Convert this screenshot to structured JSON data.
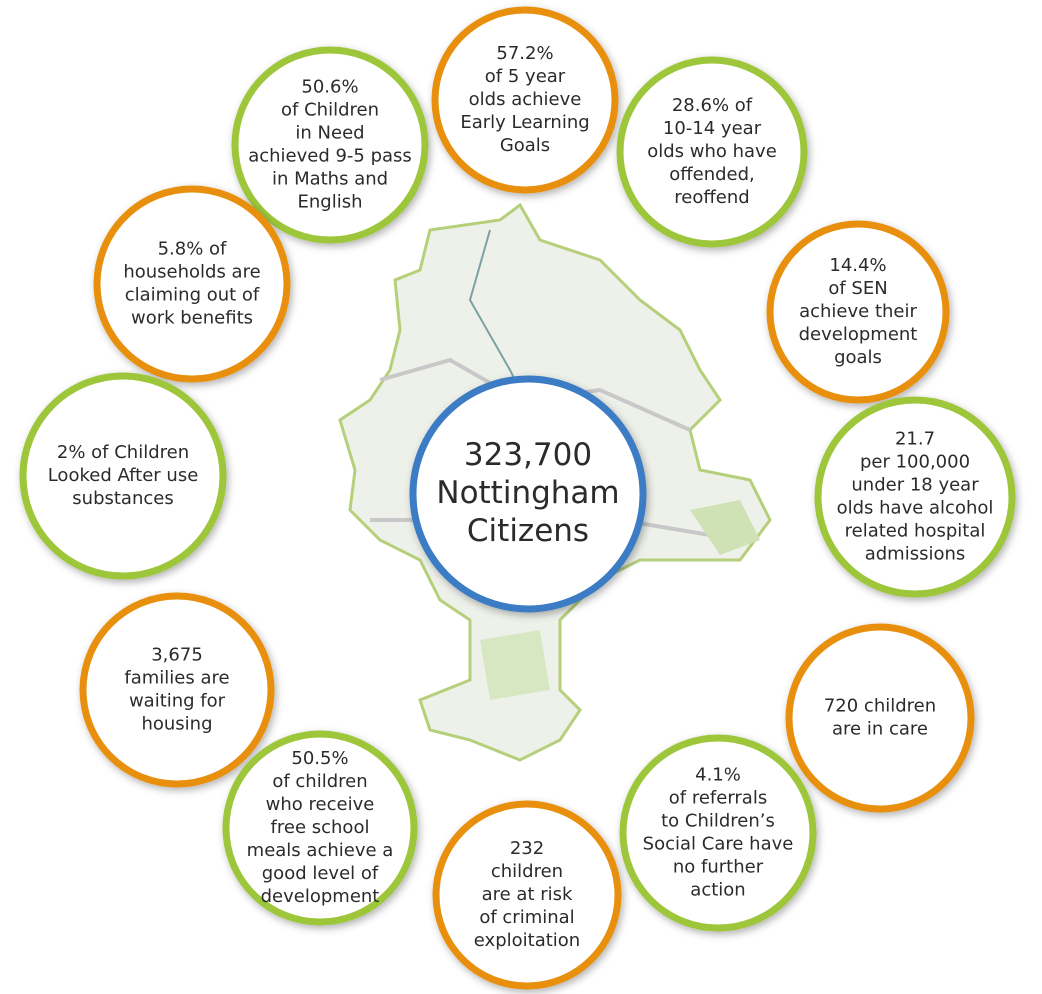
{
  "center": {
    "lines": [
      "323,700",
      "Nottingham",
      "Citizens"
    ]
  },
  "circles": [
    {
      "lines": [
        "57.2%",
        "of 5 year",
        "olds achieve",
        "Early Learning",
        "Goals"
      ]
    },
    {
      "lines": [
        "50.6%",
        "of Children",
        "in Need",
        "achieved 9-5 pass",
        "in Maths and",
        "English"
      ]
    },
    {
      "lines": [
        "28.6% of",
        "10-14 year",
        "olds who have",
        "offended,",
        "reoffend"
      ]
    },
    {
      "lines": [
        "5.8% of",
        "households are",
        "claiming out of",
        "work benefits"
      ]
    },
    {
      "lines": [
        "14.4%",
        "of SEN",
        "achieve their",
        "development",
        "goals"
      ]
    },
    {
      "lines": [
        "2% of Children",
        "Looked After use",
        "substances"
      ]
    },
    {
      "lines": [
        "21.7",
        "per 100,000",
        "under 18 year",
        "olds have alcohol",
        "related hospital",
        "admissions"
      ]
    },
    {
      "lines": [
        "3,675",
        "families are",
        "waiting for",
        "housing"
      ]
    },
    {
      "lines": [
        "720 children",
        "are in care"
      ]
    },
    {
      "lines": [
        "4.1%",
        "of referrals",
        "to Children’s",
        "Social Care have",
        "no further",
        "action"
      ]
    },
    {
      "lines": [
        "50.5%",
        "of children",
        "who receive",
        "free school",
        "meals achieve a",
        "good level of",
        "development"
      ]
    },
    {
      "lines": [
        "232",
        "children",
        "are at risk",
        "of criminal",
        "exploitation"
      ]
    }
  ]
}
